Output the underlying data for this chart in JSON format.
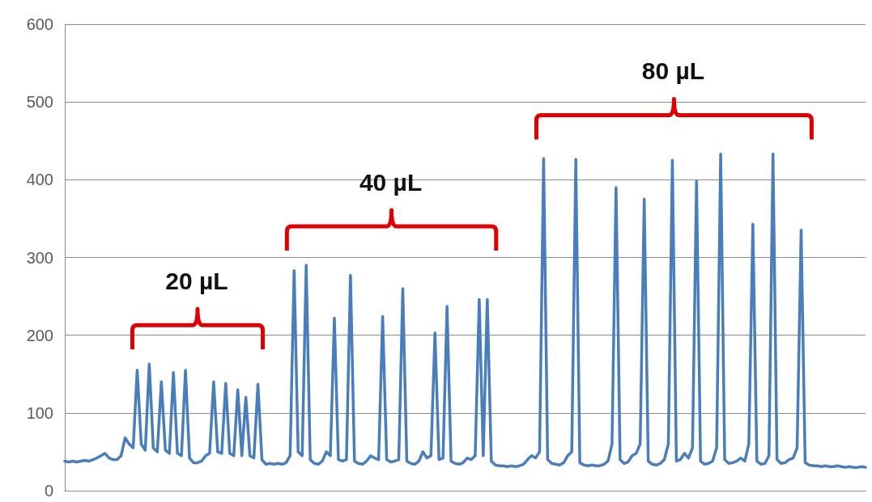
{
  "chart_data": {
    "type": "line",
    "categories": [
      null,
      null,
      null,
      null,
      null,
      null,
      null,
      null,
      null,
      null,
      null,
      null,
      null,
      null,
      null,
      null,
      null,
      null,
      null,
      null,
      null,
      null,
      null,
      null,
      null,
      null,
      null,
      null,
      null,
      null,
      null,
      null,
      null,
      null,
      null,
      null,
      null,
      null,
      null,
      null,
      null,
      null,
      null,
      null,
      null,
      null,
      null,
      null,
      null,
      null,
      null,
      null,
      null,
      null,
      null,
      null,
      null,
      null,
      null,
      null,
      null,
      null,
      null,
      null,
      null,
      null,
      null,
      null,
      null,
      null,
      null,
      null,
      null,
      null,
      null,
      null,
      null,
      null,
      null,
      null,
      null,
      null,
      null,
      null,
      null,
      null,
      null,
      null,
      null,
      null,
      null,
      null,
      null,
      null,
      null,
      null,
      null,
      null,
      null,
      null,
      null,
      null,
      null,
      null,
      null,
      null,
      null,
      null,
      null,
      null,
      null,
      null,
      null,
      null,
      null,
      null,
      null,
      null,
      null,
      null,
      null,
      null,
      null,
      null,
      null,
      null,
      null,
      null,
      null,
      null,
      null,
      null,
      null,
      null,
      null,
      null,
      null,
      null,
      null,
      null,
      null,
      null,
      null,
      null,
      null,
      null,
      null,
      null,
      null,
      null,
      null,
      null,
      null,
      null,
      null,
      null,
      null,
      null,
      null,
      null,
      null,
      null,
      null,
      null,
      null,
      null,
      null,
      null,
      null,
      null,
      null,
      null,
      null,
      null,
      null,
      null,
      null,
      null,
      null,
      null,
      null,
      null,
      null,
      null,
      null,
      null,
      null,
      null,
      null,
      null,
      null,
      null,
      null,
      null,
      null,
      null,
      null,
      null,
      null,
      null
    ],
    "series": [
      {
        "color": "#4a7ebb",
        "values": [
          38,
          37,
          38,
          37,
          38,
          39,
          38,
          40,
          42,
          45,
          48,
          42,
          40,
          40,
          45,
          68,
          60,
          55,
          155,
          60,
          52,
          163,
          55,
          50,
          140,
          52,
          48,
          152,
          48,
          45,
          155,
          42,
          36,
          36,
          38,
          45,
          48,
          140,
          50,
          48,
          138,
          48,
          45,
          130,
          45,
          120,
          45,
          42,
          137,
          40,
          34,
          35,
          34,
          35,
          34,
          36,
          45,
          283,
          50,
          45,
          290,
          40,
          35,
          34,
          38,
          50,
          45,
          222,
          40,
          38,
          40,
          277,
          38,
          35,
          34,
          38,
          45,
          42,
          40,
          224,
          40,
          37,
          38,
          40,
          260,
          38,
          35,
          34,
          38,
          50,
          42,
          45,
          203,
          40,
          42,
          237,
          38,
          35,
          34,
          36,
          42,
          40,
          45,
          246,
          45,
          246,
          38,
          33,
          32,
          32,
          31,
          32,
          31,
          32,
          34,
          40,
          45,
          42,
          50,
          427,
          40,
          35,
          34,
          33,
          36,
          45,
          50,
          426,
          36,
          33,
          32,
          33,
          32,
          32,
          34,
          38,
          60,
          390,
          40,
          35,
          37,
          45,
          48,
          60,
          375,
          38,
          34,
          33,
          35,
          40,
          60,
          425,
          38,
          40,
          48,
          42,
          55,
          398,
          38,
          34,
          35,
          38,
          55,
          433,
          40,
          35,
          36,
          38,
          42,
          38,
          60,
          343,
          38,
          34,
          35,
          45,
          433,
          40,
          35,
          36,
          40,
          42,
          55,
          335,
          36,
          33,
          32,
          32,
          31,
          32,
          31,
          31,
          32,
          31,
          30,
          31,
          30,
          30,
          31,
          30
        ]
      }
    ],
    "annotations": [
      "20 µL",
      "40 µL",
      "80 µL"
    ],
    "ylim": [
      0,
      600
    ],
    "yticks": [
      0,
      100,
      200,
      300,
      400,
      500,
      600
    ],
    "grid": "y",
    "line_style": "solid"
  }
}
